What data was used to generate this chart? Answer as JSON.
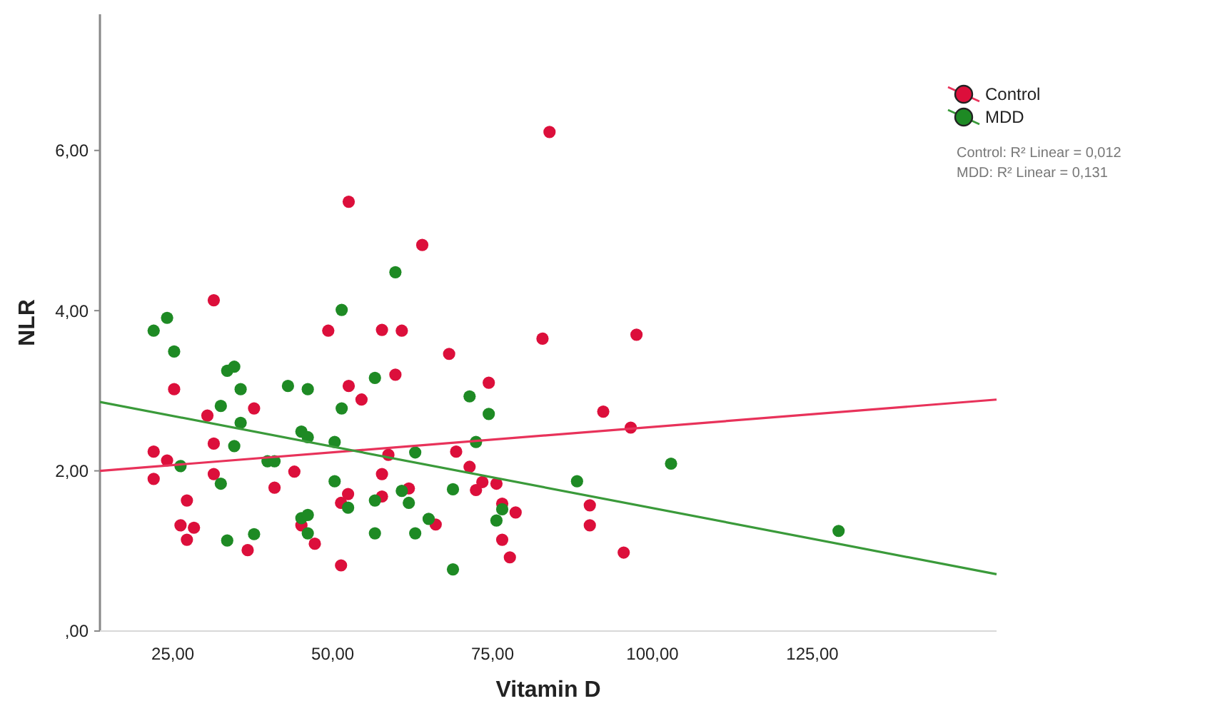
{
  "chart_data": {
    "type": "scatter",
    "xlabel": "Vitamin D",
    "ylabel": "NLR",
    "xlim": [
      13.6,
      153.8
    ],
    "ylim": [
      0,
      7.7
    ],
    "xticks": [
      {
        "value": 25,
        "label": "25,00"
      },
      {
        "value": 50,
        "label": "50,00"
      },
      {
        "value": 75,
        "label": "75,00"
      },
      {
        "value": 100,
        "label": "100,00"
      },
      {
        "value": 125,
        "label": "125,00"
      }
    ],
    "yticks": [
      {
        "value": 0,
        "label": ",00"
      },
      {
        "value": 2,
        "label": "2,00"
      },
      {
        "value": 4,
        "label": "4,00"
      },
      {
        "value": 6,
        "label": "6,00"
      }
    ],
    "legend": "top right",
    "marker": "circle",
    "grid": false,
    "annotations": [
      "Control: R² Linear = 0,012",
      "MDD: R² Linear = 0,131"
    ],
    "series": [
      {
        "name": "Control",
        "color": "#dc0f3b",
        "x": [
          25.2,
          31.4,
          30.4,
          37.7,
          52.5,
          49.3,
          52.5,
          54.5,
          59.8,
          57.7,
          60.8,
          64.0,
          68.2,
          83.9,
          82.8,
          97.5,
          74.4,
          92.3,
          96.6,
          22.0,
          24.1,
          22.0,
          31.4,
          31.4,
          27.2,
          26.2,
          28.3,
          27.2,
          36.7,
          40.9,
          44.0,
          51.3,
          52.4,
          45.1,
          47.2,
          51.3,
          58.7,
          57.7,
          57.7,
          61.9,
          66.1,
          69.3,
          71.4,
          72.4,
          73.4,
          75.6,
          76.5,
          78.6,
          90.2,
          90.2,
          76.5,
          77.7,
          95.5
        ],
        "values": [
          3.02,
          4.13,
          2.69,
          2.78,
          5.36,
          3.75,
          3.06,
          2.89,
          3.2,
          3.76,
          3.75,
          4.82,
          3.46,
          6.23,
          3.65,
          3.7,
          3.1,
          2.74,
          2.54,
          2.24,
          2.13,
          1.9,
          2.34,
          1.96,
          1.63,
          1.32,
          1.29,
          1.14,
          1.01,
          1.79,
          1.99,
          1.6,
          1.71,
          1.32,
          1.09,
          0.82,
          2.2,
          1.96,
          1.68,
          1.78,
          1.33,
          2.24,
          2.05,
          1.76,
          1.86,
          1.84,
          1.59,
          1.48,
          1.57,
          1.32,
          1.14,
          0.92,
          0.98
        ]
      },
      {
        "name": "MDD",
        "color": "#1e8a24",
        "x": [
          22.0,
          24.1,
          25.2,
          33.5,
          34.6,
          35.6,
          32.5,
          35.6,
          43.0,
          46.1,
          51.4,
          51.4,
          56.6,
          59.8,
          71.4,
          74.4,
          26.2,
          34.6,
          32.5,
          33.5,
          37.7,
          39.8,
          40.9,
          45.1,
          46.1,
          50.3,
          50.3,
          52.4,
          45.1,
          46.1,
          46.1,
          62.9,
          56.6,
          56.6,
          60.8,
          61.9,
          65.0,
          62.9,
          68.8,
          68.8,
          72.4,
          102.9,
          88.2,
          76.5,
          75.6,
          129.1
        ],
        "values": [
          3.75,
          3.91,
          3.49,
          3.25,
          3.3,
          3.02,
          2.81,
          2.6,
          3.06,
          3.02,
          4.01,
          2.78,
          3.16,
          4.48,
          2.93,
          2.71,
          2.06,
          2.31,
          1.84,
          1.13,
          1.21,
          2.12,
          2.12,
          2.49,
          2.42,
          2.36,
          1.87,
          1.54,
          1.41,
          1.45,
          1.22,
          2.23,
          1.63,
          1.22,
          1.75,
          1.6,
          1.4,
          1.22,
          1.77,
          0.77,
          2.36,
          2.09,
          1.87,
          1.52,
          1.38,
          1.25
        ]
      },
      {
        "type": "line",
        "marker": "none",
        "color": "#e8325a",
        "x": [
          13.6,
          153.8
        ],
        "values": [
          2.0,
          2.89
        ]
      },
      {
        "type": "line",
        "marker": "none",
        "color": "#3a9a3a",
        "x": [
          13.6,
          153.8
        ],
        "values": [
          2.86,
          0.71
        ]
      }
    ]
  }
}
